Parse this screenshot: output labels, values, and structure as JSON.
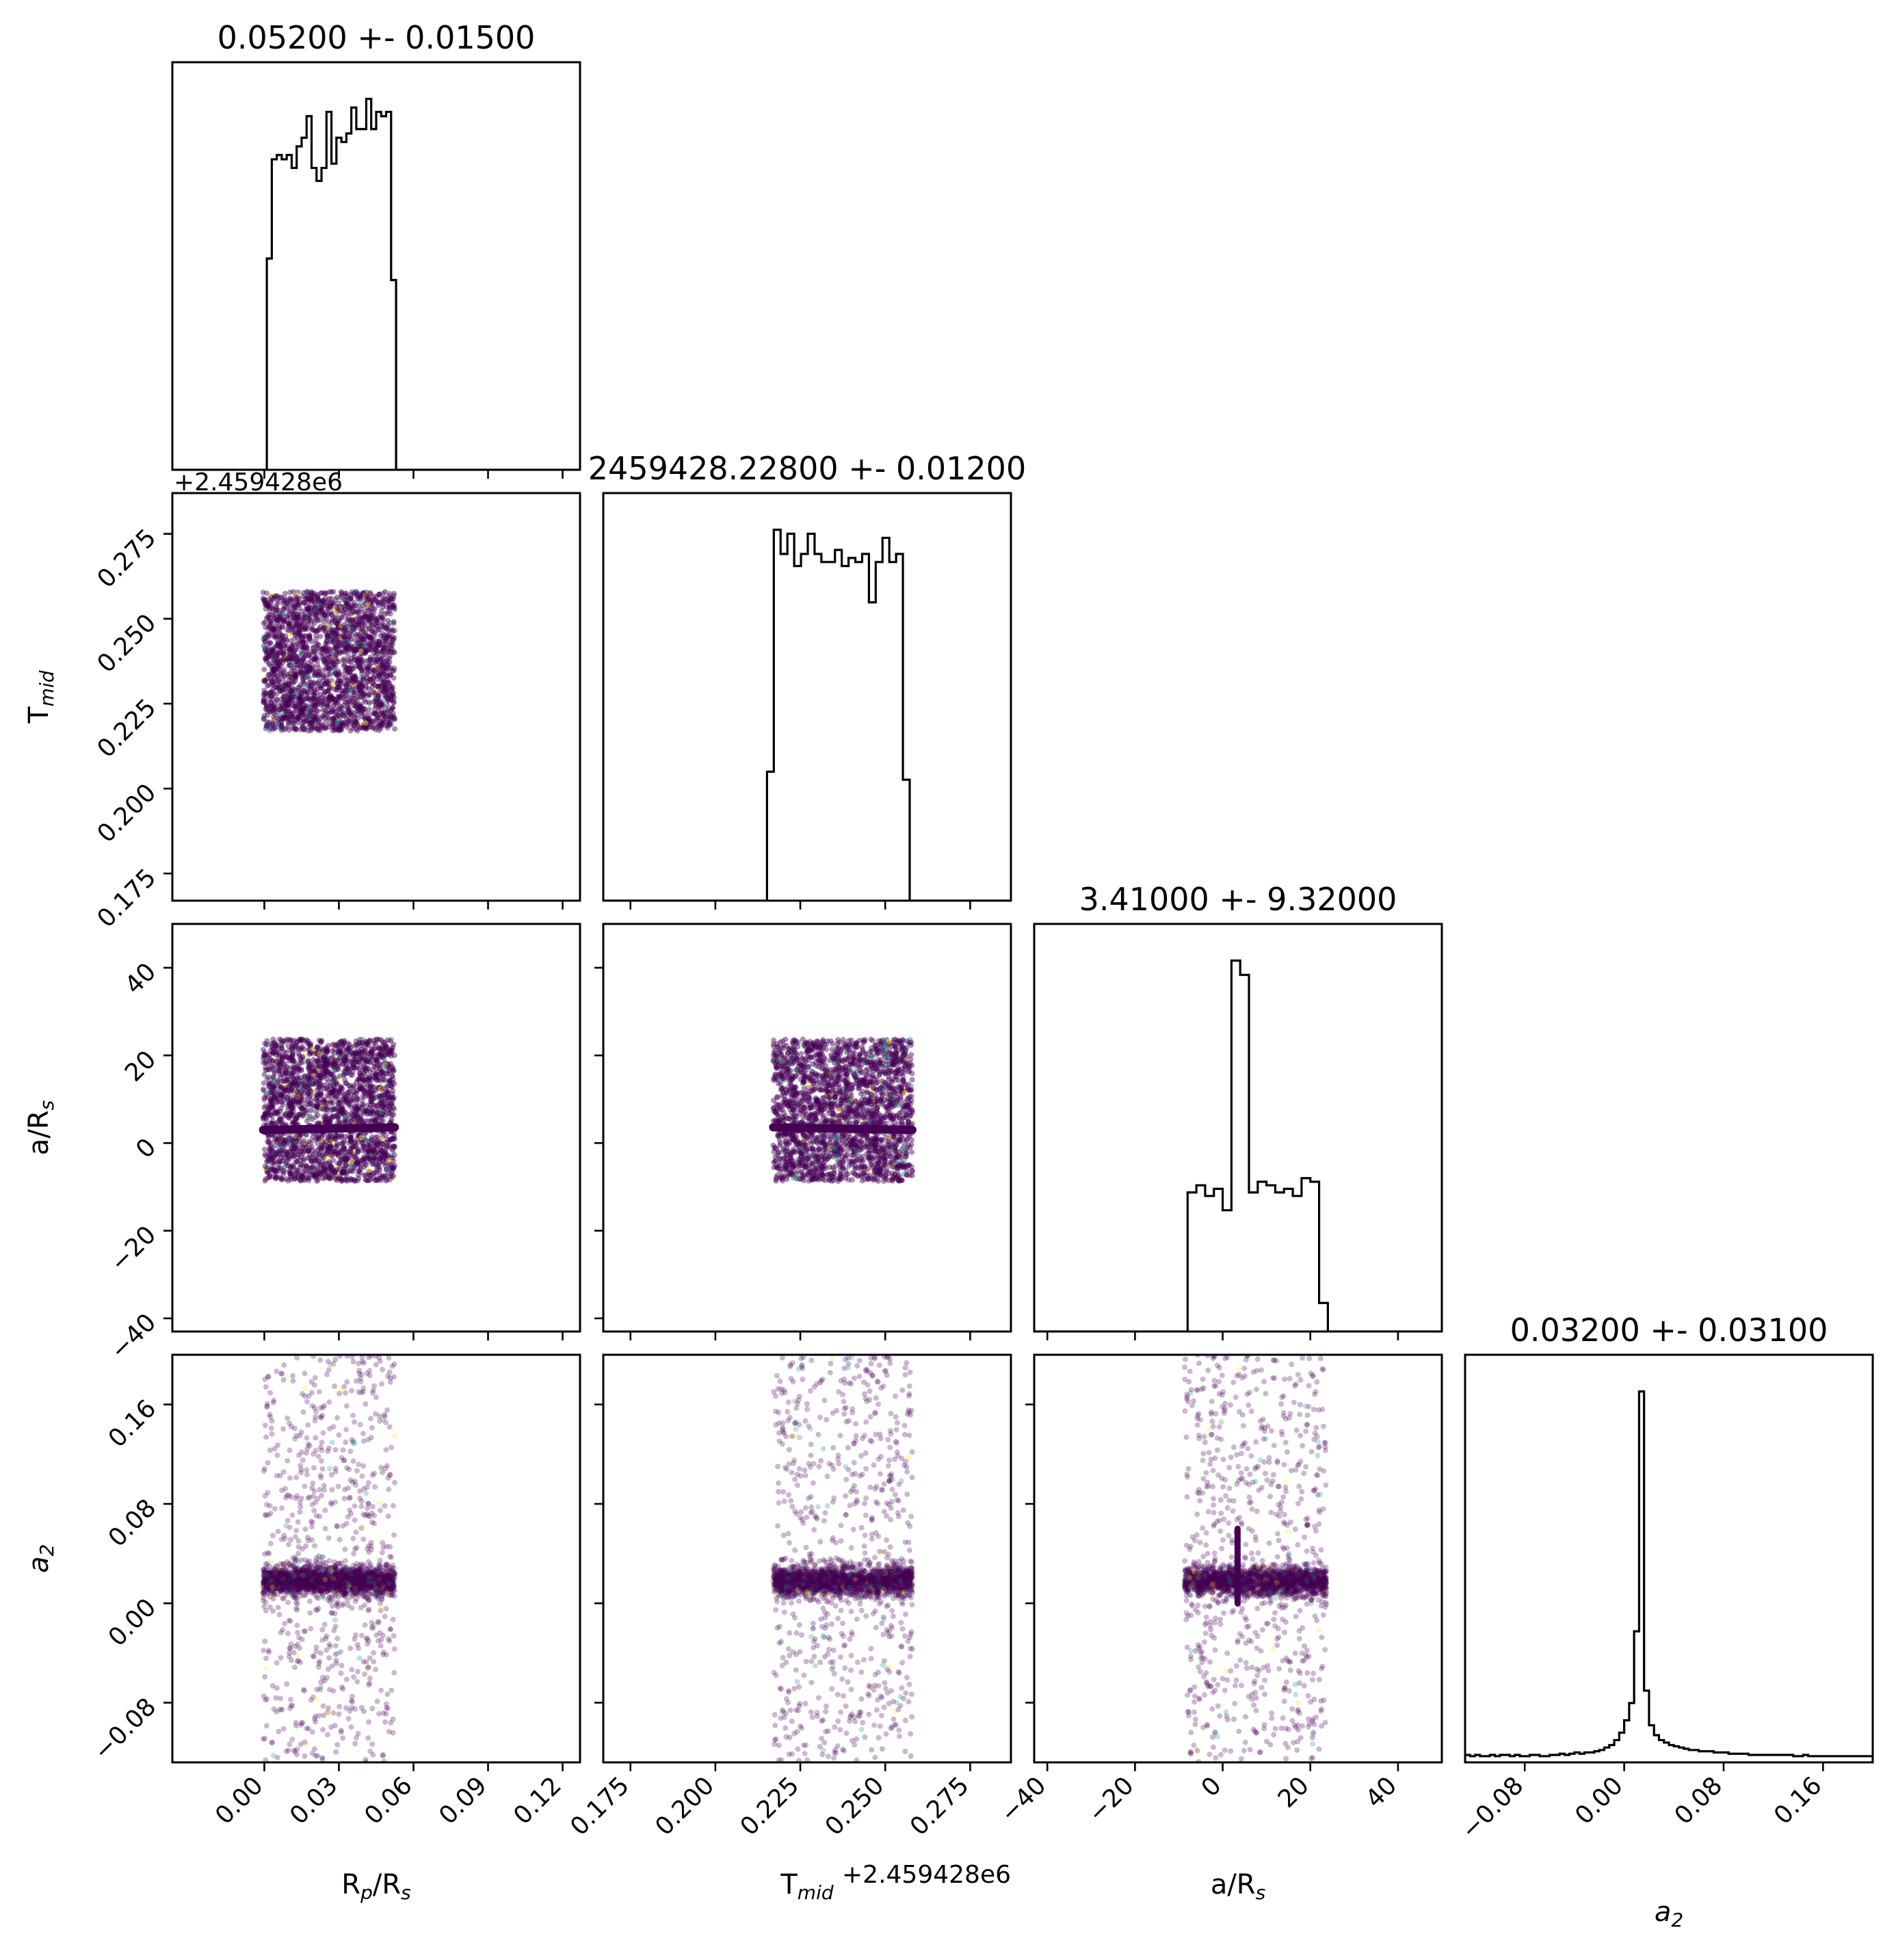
{
  "chart_data": {
    "type": "scatter",
    "grid": false,
    "parameters": [
      {
        "key": "rp",
        "label": "R",
        "sub": "p",
        "label2": "/R",
        "sub2": "s"
      },
      {
        "key": "tmid",
        "label": "T",
        "sub": "mid",
        "label2": "",
        "sub2": ""
      },
      {
        "key": "ars",
        "label": "a/R",
        "sub": "s",
        "label2": "",
        "sub2": ""
      },
      {
        "key": "a2",
        "label": "a",
        "sub": "2",
        "label2": "",
        "sub2": "",
        "italic": true
      }
    ],
    "titles": [
      "0.05200 +- 0.01500",
      "2459428.22800 +- 0.01200",
      "3.41000 +- 9.32000",
      "0.03200 +- 0.03100"
    ],
    "offset_text": "+2.459428e6",
    "ranges": {
      "rp": [
        -0.037,
        0.127
      ],
      "tmid": [
        0.167,
        0.287
      ],
      "ars": [
        -43,
        50
      ],
      "a2": [
        -0.128,
        0.2
      ]
    },
    "ticks": {
      "rp": [
        "0.00",
        "0.03",
        "0.06",
        "0.09",
        "0.12"
      ],
      "tmid": [
        "0.175",
        "0.200",
        "0.225",
        "0.250",
        "0.275"
      ],
      "ars": [
        "−40",
        "−20",
        "0",
        "20",
        "40"
      ],
      "a2": [
        "−0.08",
        "0.00",
        "0.08",
        "0.16"
      ]
    },
    "tick_values": {
      "rp": [
        0.0,
        0.03,
        0.06,
        0.09,
        0.12
      ],
      "tmid": [
        0.175,
        0.2,
        0.225,
        0.25,
        0.275
      ],
      "ars": [
        -40,
        -20,
        0,
        20,
        40
      ],
      "a2": [
        -0.08,
        0.0,
        0.08,
        0.16
      ]
    },
    "histograms": [
      {
        "param": "rp",
        "bin_edges": [
          -0.001,
          0.001,
          0.003,
          0.005,
          0.007,
          0.009,
          0.011,
          0.013,
          0.015,
          0.017,
          0.019,
          0.021,
          0.023,
          0.025,
          0.027,
          0.029,
          0.031,
          0.033,
          0.035,
          0.037,
          0.039,
          0.041,
          0.043,
          0.045,
          0.047,
          0.049,
          0.051,
          0.053,
          0.055
        ],
        "counts": [
          0,
          49,
          72,
          73,
          72,
          73,
          70,
          75,
          77,
          82,
          70,
          67,
          70,
          83,
          71,
          77,
          76,
          78,
          84,
          79,
          79,
          86,
          79,
          83,
          82,
          83,
          44,
          0
        ]
      },
      {
        "param": "tmid",
        "bin_edges": [
          0.2132,
          0.2152,
          0.2172,
          0.2192,
          0.2212,
          0.2232,
          0.2252,
          0.2272,
          0.2292,
          0.2312,
          0.2332,
          0.2352,
          0.2372,
          0.2392,
          0.2412,
          0.2432,
          0.2452,
          0.2472,
          0.2492,
          0.2512,
          0.2532,
          0.2552,
          0.2572,
          0.2592,
          0.2612
        ],
        "counts": [
          0,
          32,
          92,
          86,
          91,
          83,
          86,
          91,
          86,
          84,
          84,
          87,
          83,
          85,
          84,
          86,
          74,
          84,
          90,
          84,
          86,
          30,
          0,
          0
        ]
      },
      {
        "param": "ars",
        "bin_edges": [
          -10,
          -8,
          -6,
          -4,
          -2,
          0,
          2,
          4,
          6,
          8,
          10,
          12,
          14,
          16,
          18,
          20,
          22,
          24,
          26
        ],
        "counts": [
          0,
          39,
          41,
          38,
          40,
          34,
          104,
          100,
          39,
          42,
          41,
          39,
          40,
          38,
          43,
          42,
          8,
          0
        ]
      },
      {
        "param": "a2",
        "bin_edges": [
          -0.128,
          -0.124,
          -0.12,
          -0.116,
          -0.112,
          -0.108,
          -0.104,
          -0.1,
          -0.096,
          -0.092,
          -0.088,
          -0.084,
          -0.08,
          -0.076,
          -0.072,
          -0.068,
          -0.064,
          -0.06,
          -0.056,
          -0.052,
          -0.048,
          -0.044,
          -0.04,
          -0.036,
          -0.032,
          -0.028,
          -0.024,
          -0.02,
          -0.016,
          -0.012,
          -0.008,
          -0.004,
          0.0,
          0.004,
          0.008,
          0.012,
          0.016,
          0.02,
          0.024,
          0.028,
          0.032,
          0.036,
          0.04,
          0.044,
          0.048,
          0.052,
          0.056,
          0.06,
          0.064,
          0.068,
          0.072,
          0.076,
          0.08,
          0.084,
          0.088,
          0.092,
          0.096,
          0.1,
          0.104,
          0.108,
          0.112,
          0.116,
          0.12,
          0.124,
          0.128,
          0.132,
          0.136,
          0.14,
          0.144,
          0.148,
          0.152,
          0.156,
          0.16,
          0.164,
          0.168,
          0.172,
          0.176,
          0.18,
          0.184,
          0.188,
          0.192,
          0.196,
          0.2
        ],
        "counts": [
          6,
          5,
          6,
          5,
          5,
          6,
          5,
          6,
          6,
          5,
          6,
          5,
          5,
          6,
          6,
          5,
          5,
          6,
          6,
          7,
          6,
          7,
          8,
          7,
          8,
          8,
          9,
          10,
          12,
          14,
          18,
          24,
          34,
          48,
          106,
          300,
          58,
          30,
          22,
          18,
          16,
          14,
          13,
          12,
          11,
          10,
          10,
          9,
          9,
          9,
          8,
          8,
          8,
          7,
          7,
          7,
          7,
          6,
          6,
          6,
          6,
          6,
          6,
          6,
          6,
          6,
          5,
          5,
          6,
          5,
          5,
          5,
          5,
          5,
          5,
          5,
          5,
          5,
          5,
          5,
          5,
          5
        ]
      }
    ],
    "scatter_regions": {
      "rp": {
        "center": 0.026,
        "half_width": 0.0265
      },
      "tmid": {
        "center": 0.2375,
        "half_width": 0.0205
      },
      "ars": {
        "center": 7.5,
        "half_width": 16.2
      },
      "a2": {
        "core": 0.018,
        "core_sd": 0.006,
        "tail_min": -0.128,
        "tail_max": 0.2
      }
    },
    "colors": {
      "line": "#000000",
      "scatter_main": "#440154",
      "scatter_accent": "#21918c",
      "scatter_light": "#fde725"
    }
  }
}
